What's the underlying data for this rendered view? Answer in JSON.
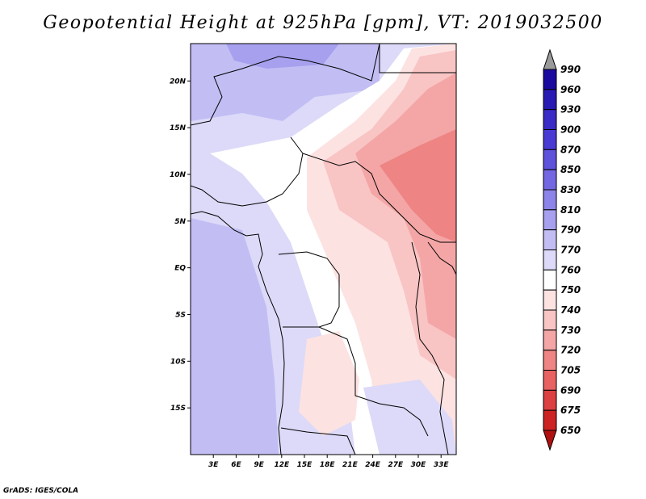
{
  "title": "Geopotential Height at 925hPa [gpm], VT: 2019032500",
  "footer": "GrADS: IGES/COLA",
  "map": {
    "lon_range": [
      0,
      35
    ],
    "lat_range": [
      -20,
      24
    ],
    "lat_ticks": [
      {
        "value": 20,
        "label": "20N"
      },
      {
        "value": 15,
        "label": "15N"
      },
      {
        "value": 10,
        "label": "10N"
      },
      {
        "value": 5,
        "label": "5N"
      },
      {
        "value": 0,
        "label": "EQ"
      },
      {
        "value": -5,
        "label": "5S"
      },
      {
        "value": -10,
        "label": "10S"
      },
      {
        "value": -15,
        "label": "15S"
      }
    ],
    "lon_ticks": [
      {
        "value": 3,
        "label": "3E"
      },
      {
        "value": 6,
        "label": "6E"
      },
      {
        "value": 9,
        "label": "9E"
      },
      {
        "value": 12,
        "label": "12E"
      },
      {
        "value": 15,
        "label": "15E"
      },
      {
        "value": 18,
        "label": "18E"
      },
      {
        "value": 21,
        "label": "21E"
      },
      {
        "value": 24,
        "label": "24E"
      },
      {
        "value": 27,
        "label": "27E"
      },
      {
        "value": 30,
        "label": "30E"
      },
      {
        "value": 33,
        "label": "33E"
      }
    ]
  },
  "colorbar": {
    "levels": [
      "990",
      "960",
      "930",
      "900",
      "870",
      "850",
      "830",
      "810",
      "790",
      "770",
      "760",
      "750",
      "740",
      "730",
      "720",
      "705",
      "690",
      "675",
      "650"
    ],
    "colors": [
      "#1a0aa0",
      "#2a1ab4",
      "#3a2ac6",
      "#4a3ad4",
      "#5e52dc",
      "#7468e2",
      "#8c84e8",
      "#a6a0ee",
      "#c2bef4",
      "#dcdaf8",
      "#ffffff",
      "#fde2e2",
      "#f9c4c4",
      "#f4a6a6",
      "#ee8484",
      "#e86262",
      "#dc4040",
      "#cc2222",
      "#b01010"
    ],
    "top_arrow_color": "#9a9a9a",
    "bottom_arrow_color": "#b01010"
  }
}
